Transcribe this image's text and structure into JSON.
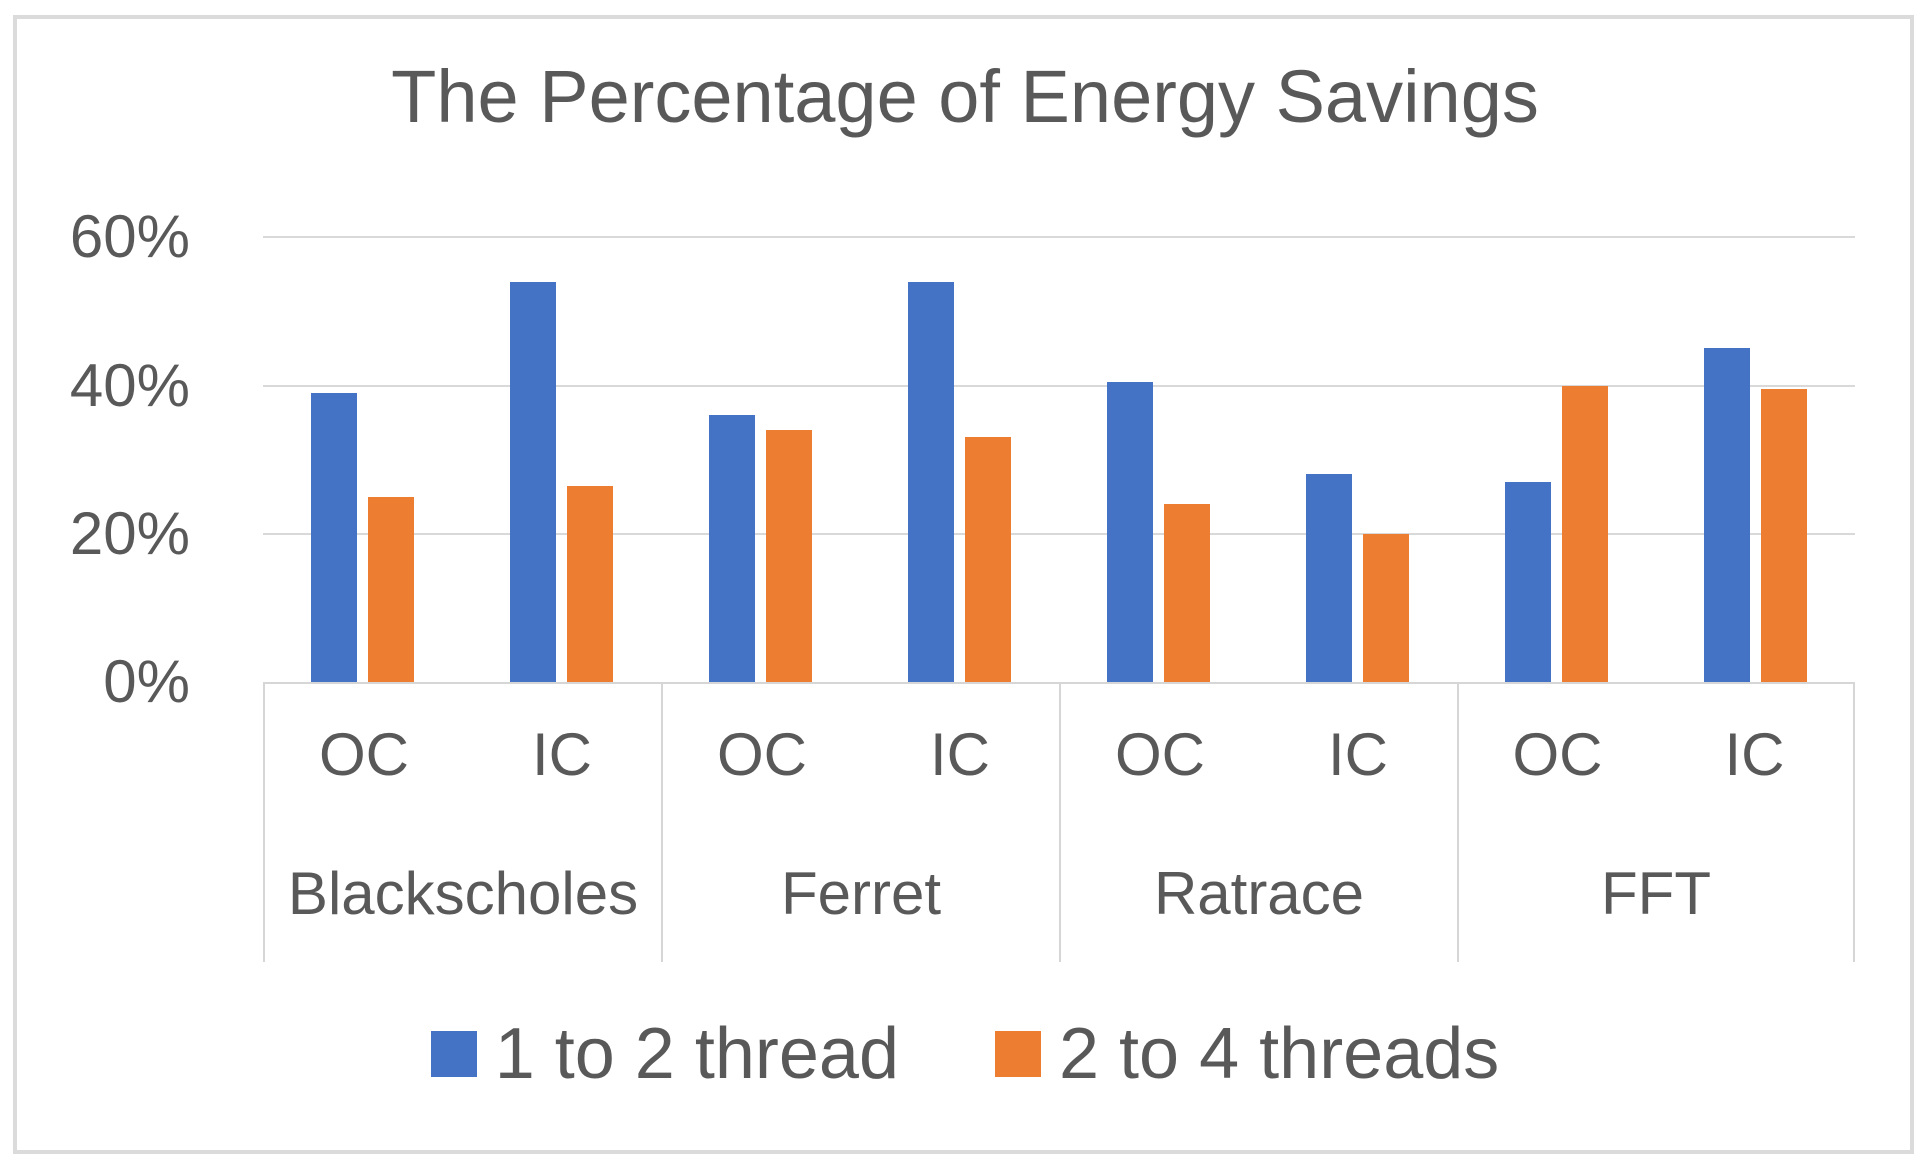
{
  "chart_data": {
    "type": "bar",
    "title": "The Percentage of Energy Savings",
    "xlabel": "",
    "ylabel": "",
    "units": "percent",
    "y_axis": {
      "tick_labels": [
        "0%",
        "20%",
        "40%",
        "60%"
      ],
      "tick_values": [
        0,
        20,
        40,
        60
      ],
      "min": 0,
      "max": 60,
      "grid": true
    },
    "groups": [
      {
        "label": "Blackscholes",
        "subcategories": [
          "OC",
          "IC"
        ]
      },
      {
        "label": "Ferret",
        "subcategories": [
          "OC",
          "IC"
        ]
      },
      {
        "label": "Ratrace",
        "subcategories": [
          "OC",
          "IC"
        ]
      },
      {
        "label": "FFT",
        "subcategories": [
          "OC",
          "IC"
        ]
      }
    ],
    "categories": [
      "Blackscholes OC",
      "Blackscholes IC",
      "Ferret OC",
      "Ferret IC",
      "Ratrace OC",
      "Ratrace IC",
      "FFT OC",
      "FFT IC"
    ],
    "series": [
      {
        "name": "1 to 2 thread",
        "color": "#4472C4",
        "values": [
          39,
          54,
          36,
          54,
          40.5,
          28,
          27,
          45
        ]
      },
      {
        "name": "2 to 4 threads",
        "color": "#ED7D31",
        "values": [
          25,
          26.5,
          34,
          33,
          24,
          20,
          40,
          39.5
        ]
      }
    ],
    "legend_position": "bottom"
  },
  "colors": {
    "background": "#FFFFFF",
    "text": "#595959",
    "gridline": "#D9D9D9",
    "frame_border": "#DBDBDB",
    "series_blue": "#4472C4",
    "series_orange": "#ED7D31"
  }
}
